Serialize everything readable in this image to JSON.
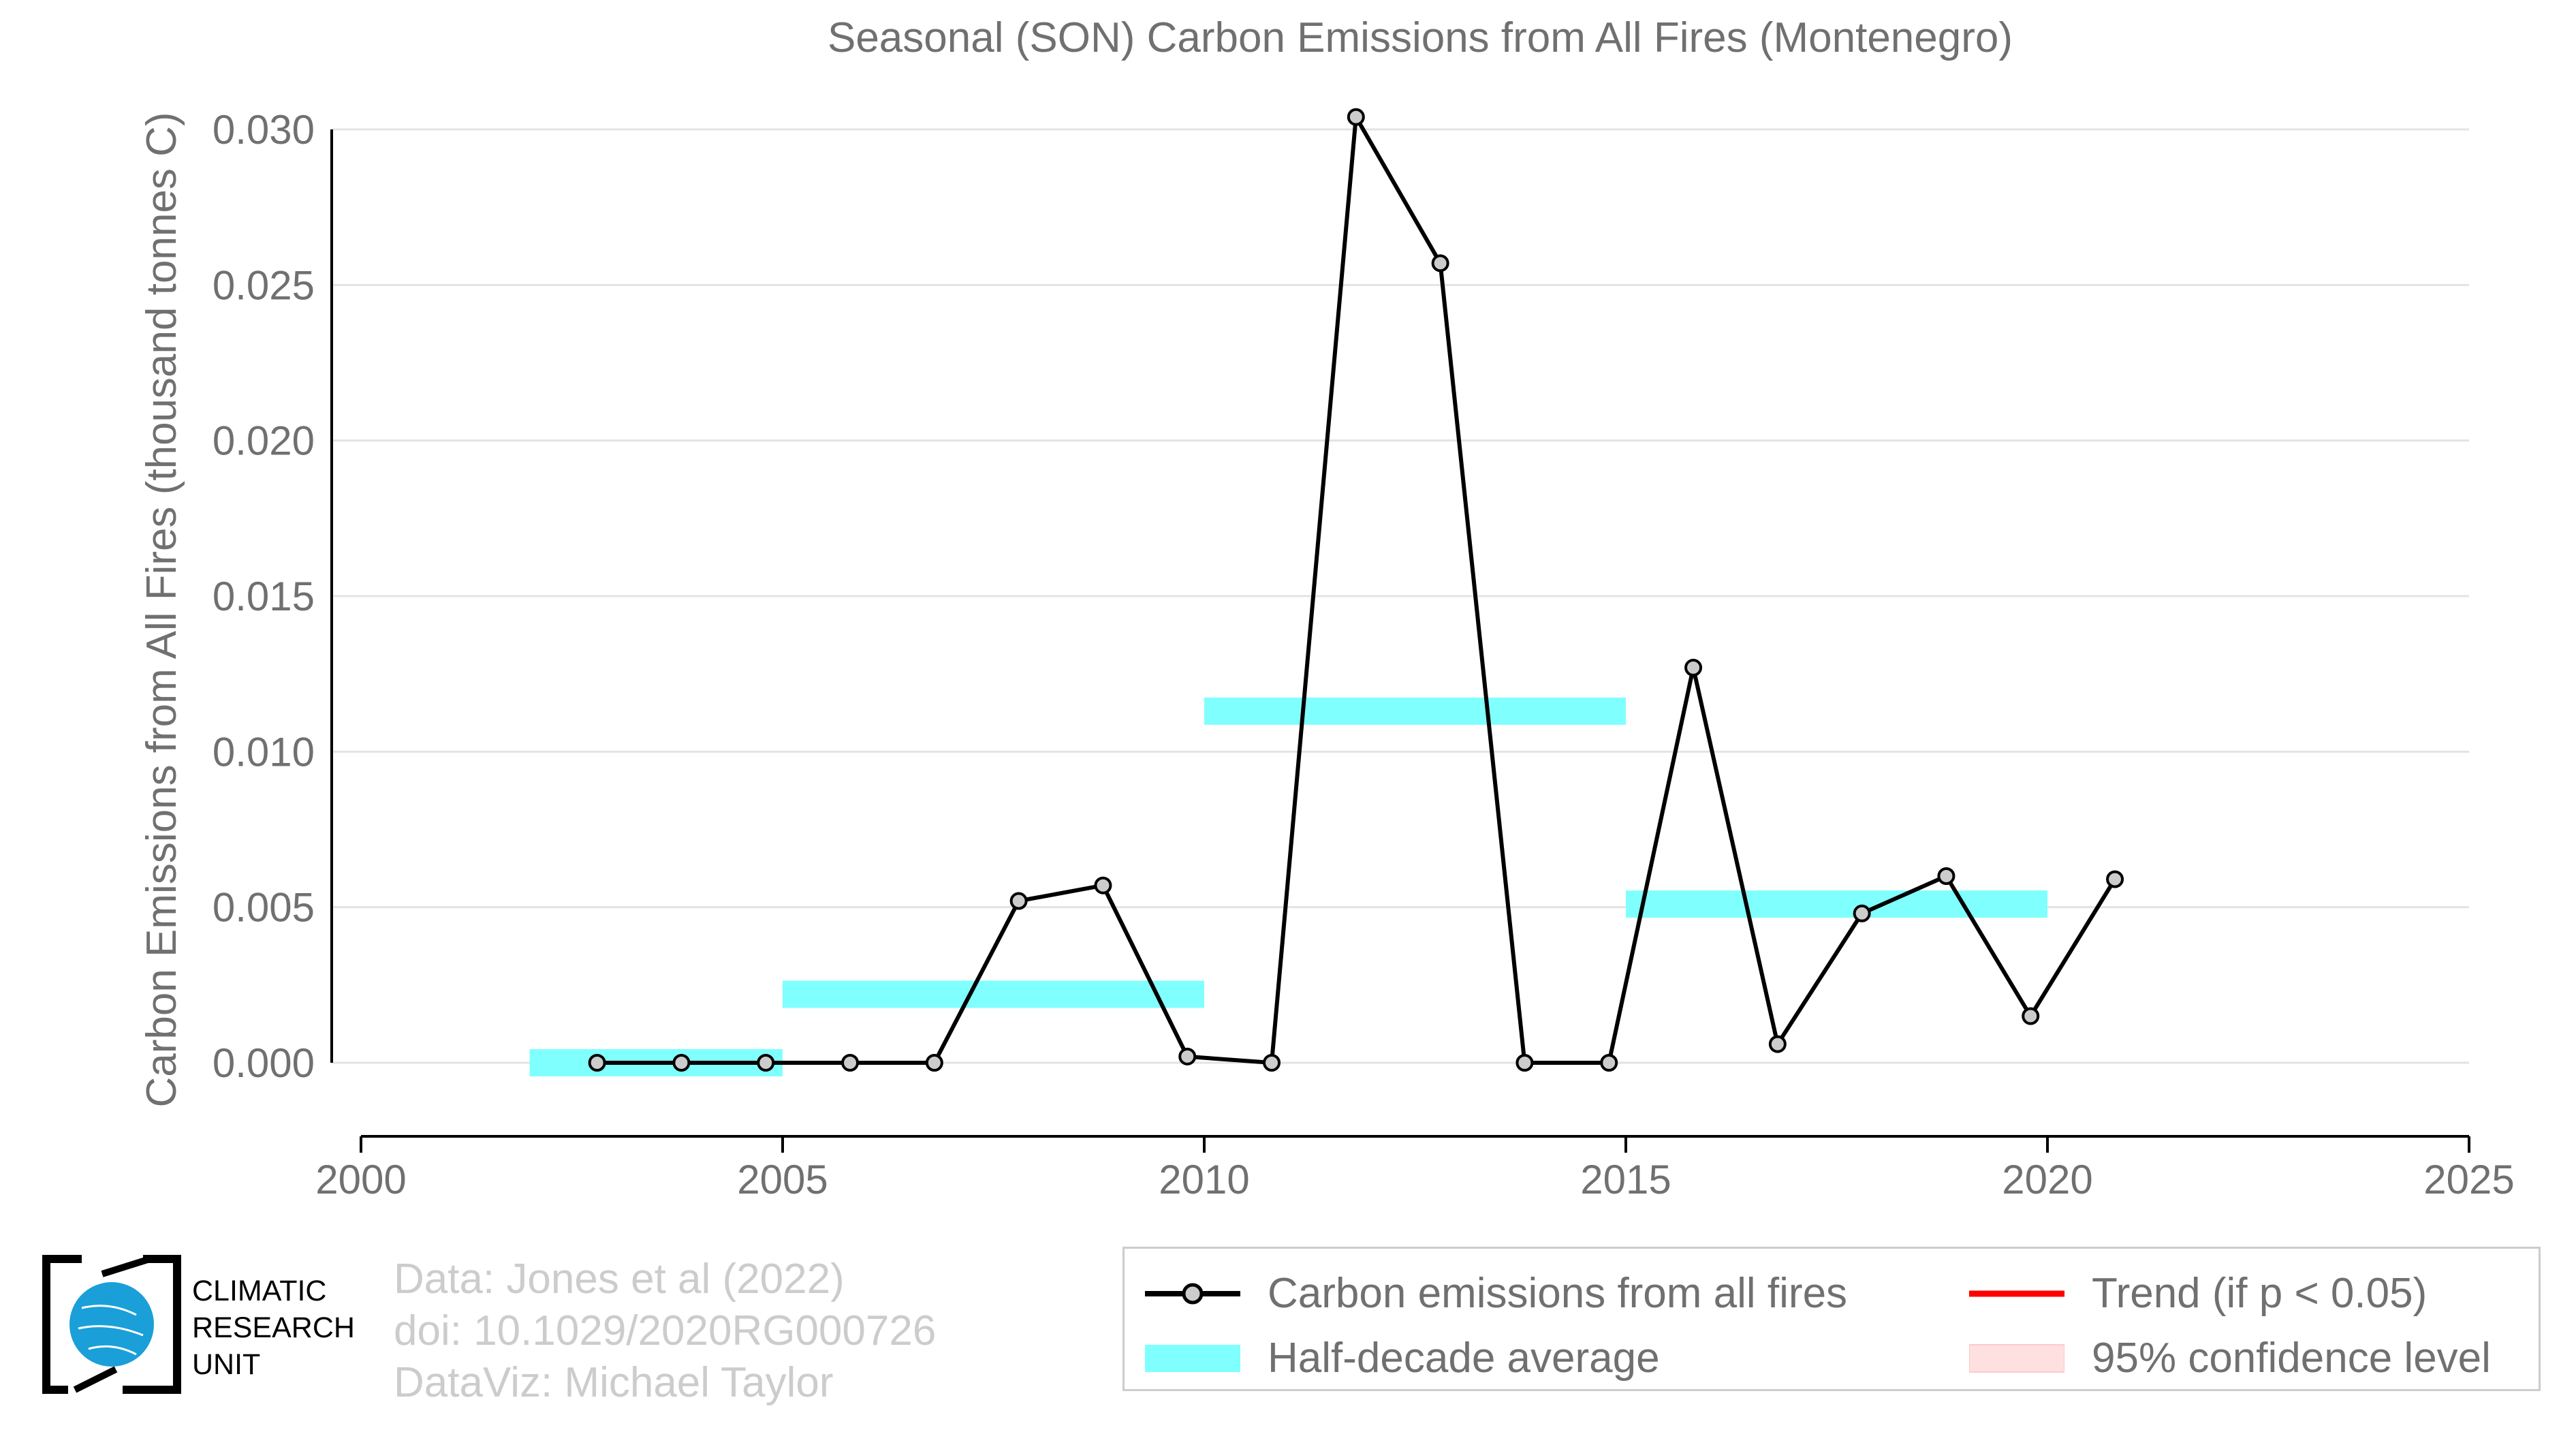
{
  "chart_data": {
    "type": "line",
    "title": "Seasonal (SON) Carbon Emissions from All Fires (Montenegro)",
    "ylabel": "Carbon Emissions from All Fires (thousand tonnes C)",
    "xlabel": "",
    "xlim": [
      2000,
      2025
    ],
    "ylim": [
      -0.0025,
      0.0325
    ],
    "x_ticks": [
      "2000",
      "2005",
      "2010",
      "2015",
      "2020",
      "2025"
    ],
    "y_ticks": [
      "0.000",
      "0.005",
      "0.010",
      "0.015",
      "0.020",
      "0.025",
      "0.030"
    ],
    "grid": true,
    "series": [
      {
        "name": "Carbon emissions from all fires",
        "color": "#000000",
        "marker_fill": "#cccccc",
        "x": [
          2002.8,
          2003.8,
          2004.8,
          2005.8,
          2006.8,
          2007.8,
          2008.8,
          2009.8,
          2010.8,
          2011.8,
          2012.8,
          2013.8,
          2014.8,
          2015.8,
          2016.8,
          2017.8,
          2018.8,
          2019.8,
          2020.8
        ],
        "y": [
          0.0,
          0.0,
          0.0,
          0.0,
          0.0,
          0.0052,
          0.0057,
          0.0002,
          0.0,
          0.0304,
          0.0257,
          0.0,
          0.0,
          0.0127,
          0.0006,
          0.0048,
          0.006,
          0.0015,
          0.0059
        ]
      }
    ],
    "half_decade_average": {
      "name": "Half-decade average",
      "color": "#80ffff",
      "segments": [
        {
          "x0": 2002,
          "x1": 2005,
          "y": 0.0
        },
        {
          "x0": 2005,
          "x1": 2010,
          "y": 0.0022
        },
        {
          "x0": 2010,
          "x1": 2015,
          "y": 0.0113
        },
        {
          "x0": 2015,
          "x1": 2020,
          "y": 0.0051
        }
      ]
    },
    "legend": {
      "placement": "bottom-right",
      "entries": [
        {
          "label": "Carbon emissions from all fires",
          "type": "line-marker",
          "color": "#000000"
        },
        {
          "label": "Trend (if p < 0.05)",
          "type": "line",
          "color": "#ff0000"
        },
        {
          "label": "Half-decade average",
          "type": "band",
          "color": "#80ffff"
        },
        {
          "label": "95% confidence level",
          "type": "band",
          "color": "#ffe0e0"
        }
      ]
    }
  },
  "credits": {
    "line1": "Data: Jones et al (2022)",
    "line2": "doi: 10.1029/2020RG000726",
    "line3": "DataViz: Michael Taylor"
  },
  "logo": {
    "line1": "CLIMATIC",
    "line2": "RESEARCH",
    "line3": "UNIT",
    "globe_color": "#1a9fd9"
  }
}
